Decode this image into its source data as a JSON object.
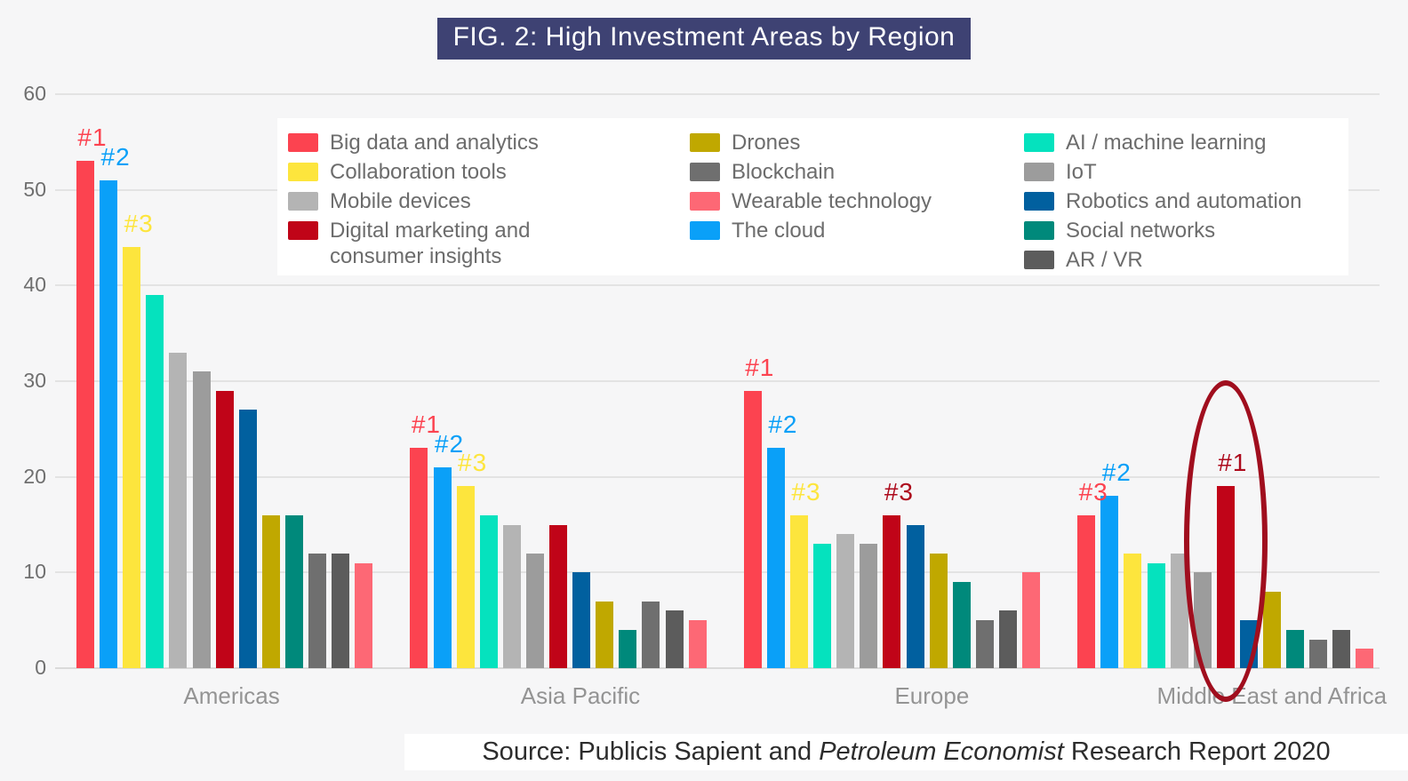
{
  "title": "FIG. 2: High Investment Areas by Region",
  "source": {
    "prefix": "Source: Publicis Sapient and ",
    "italic": "Petroleum Economist",
    "suffix": " Research Report 2020"
  },
  "chart_data": {
    "type": "bar",
    "title": "FIG. 2: High Investment Areas by Region",
    "categories": [
      "Americas",
      "Asia Pacific",
      "Europe",
      "Middle East and Africa"
    ],
    "ylim": [
      0,
      60
    ],
    "yticks": [
      0,
      10,
      20,
      30,
      40,
      50,
      60
    ],
    "grid": true,
    "legend_position": "top-center",
    "series": [
      {
        "name": "Big data and analytics",
        "color": "#FC4350",
        "values": [
          53,
          23,
          29,
          16
        ]
      },
      {
        "name": "The cloud",
        "color": "#0AA0F8",
        "values": [
          51,
          21,
          23,
          18
        ]
      },
      {
        "name": "Collaboration tools",
        "color": "#FDE53D",
        "values": [
          44,
          19,
          16,
          12
        ]
      },
      {
        "name": "AI / machine learning",
        "color": "#05E2BE",
        "values": [
          39,
          16,
          13,
          11
        ]
      },
      {
        "name": "Mobile devices",
        "color": "#B4B4B4",
        "values": [
          33,
          15,
          14,
          12
        ]
      },
      {
        "name": "IoT",
        "color": "#9C9C9C",
        "values": [
          31,
          12,
          13,
          10
        ]
      },
      {
        "name": "Digital marketing and consumer insights",
        "color": "#C00418",
        "values": [
          29,
          15,
          16,
          19
        ]
      },
      {
        "name": "Robotics and automation",
        "color": "#01609F",
        "values": [
          27,
          10,
          15,
          5
        ]
      },
      {
        "name": "Drones",
        "color": "#C0A800",
        "values": [
          16,
          7,
          12,
          8
        ]
      },
      {
        "name": "Social networks",
        "color": "#00897B",
        "values": [
          16,
          4,
          9,
          4
        ]
      },
      {
        "name": "Blockchain",
        "color": "#6F6F6F",
        "values": [
          12,
          7,
          5,
          3
        ]
      },
      {
        "name": "AR / VR",
        "color": "#5C5C5C",
        "values": [
          12,
          6,
          6,
          4
        ]
      },
      {
        "name": "Wearable technology",
        "color": "#FD6875",
        "values": [
          11,
          5,
          10,
          2
        ]
      }
    ],
    "annotations": [
      {
        "region": 0,
        "series": 0,
        "rank": "#1",
        "color": "#FC4350"
      },
      {
        "region": 0,
        "series": 1,
        "rank": "#2",
        "color": "#0AA0F8"
      },
      {
        "region": 0,
        "series": 2,
        "rank": "#3",
        "color": "#FDE53D"
      },
      {
        "region": 1,
        "series": 0,
        "rank": "#1",
        "color": "#FC4350"
      },
      {
        "region": 1,
        "series": 1,
        "rank": "#2",
        "color": "#0AA0F8"
      },
      {
        "region": 1,
        "series": 2,
        "rank": "#3",
        "color": "#FDE53D"
      },
      {
        "region": 2,
        "series": 0,
        "rank": "#1",
        "color": "#FC4350"
      },
      {
        "region": 2,
        "series": 1,
        "rank": "#2",
        "color": "#0AA0F8"
      },
      {
        "region": 2,
        "series": 2,
        "rank": "#3",
        "color": "#FDE53D"
      },
      {
        "region": 2,
        "series": 6,
        "rank": "#3",
        "color": "#AD0A1C"
      },
      {
        "region": 3,
        "series": 0,
        "rank": "#3",
        "color": "#FC4350"
      },
      {
        "region": 3,
        "series": 1,
        "rank": "#2",
        "color": "#0AA0F8"
      },
      {
        "region": 3,
        "series": 6,
        "rank": "#1",
        "color": "#AD0A1C"
      }
    ],
    "highlight_ellipse": {
      "region": 3,
      "series": 6,
      "color": "#A00E1E"
    }
  },
  "legend": {
    "columns": [
      [
        "Big data and analytics",
        "Collaboration tools",
        "Mobile devices",
        "Digital marketing and consumer insights"
      ],
      [
        "Drones",
        "Blockchain",
        "Wearable technology",
        "The cloud"
      ],
      [
        "AI / machine learning",
        "IoT",
        "Robotics and automation",
        "Social networks",
        "AR / VR"
      ]
    ]
  }
}
